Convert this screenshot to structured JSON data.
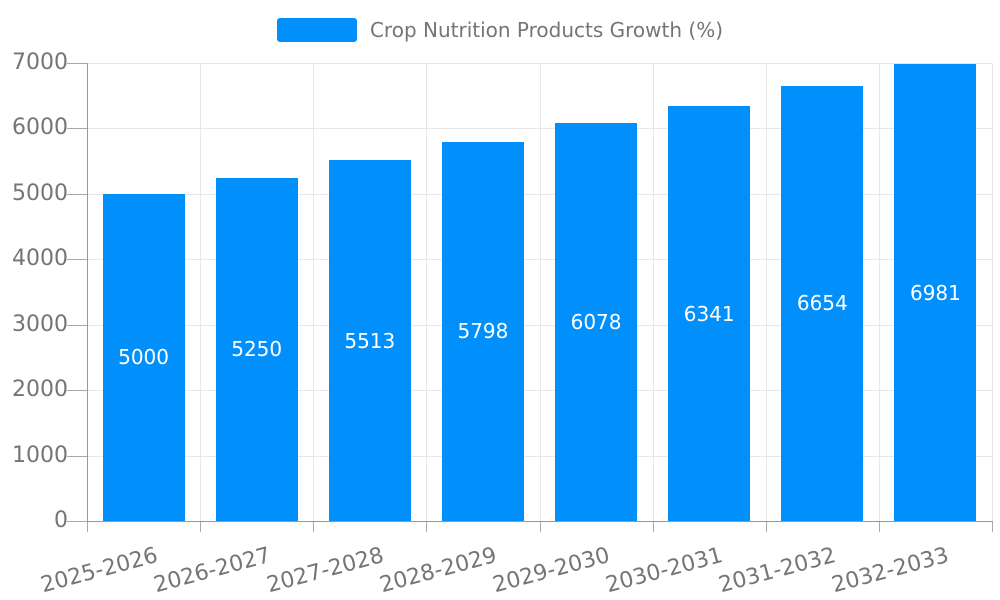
{
  "chart_data": {
    "type": "bar",
    "title": "Crop Nutrition Products Growth (%)",
    "legend_position": "top",
    "categories": [
      "2025-2026",
      "2026-2027",
      "2027-2028",
      "2028-2029",
      "2029-2030",
      "2030-2031",
      "2031-2032",
      "2032-2033"
    ],
    "series": [
      {
        "name": "Crop Nutrition Products Growth (%)",
        "values": [
          5000,
          5250,
          5513,
          5798,
          6078,
          6341,
          6654,
          6981
        ]
      }
    ],
    "xlabel": "",
    "ylabel": "",
    "ylim": [
      0,
      7000
    ],
    "yticks": [
      0,
      1000,
      2000,
      3000,
      4000,
      5000,
      6000,
      7000
    ],
    "grid": true,
    "x_label_rotation_deg": -15,
    "bar_value_labels_visible": true,
    "colors": {
      "bar": "#008FFB",
      "bar_value_label": "#ffffff",
      "axis_label": "#757575",
      "gridline": "#e7e7e7",
      "axis_line": "#999999",
      "tick": "#a8a8a8",
      "background": "#ffffff"
    }
  }
}
